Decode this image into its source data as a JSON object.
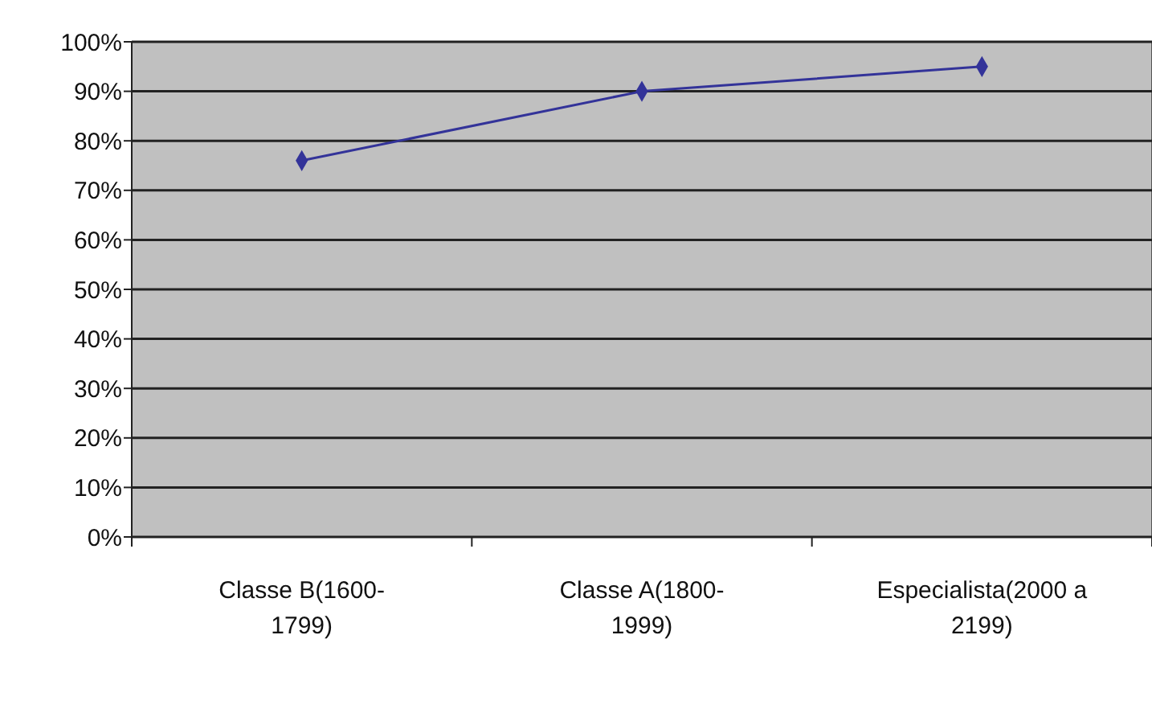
{
  "chart_data": {
    "type": "line",
    "categories": [
      "Classe B(1600-1799)",
      "Classe A(1800-1999)",
      "Especialista(2000 a 2199)"
    ],
    "series": [
      {
        "color": "#333399",
        "values": [
          76,
          90,
          95
        ]
      }
    ],
    "ylim": [
      0,
      100
    ],
    "yticks": [
      {
        "value": 0,
        "label": "0%"
      },
      {
        "value": 10,
        "label": "10%"
      },
      {
        "value": 20,
        "label": "20%"
      },
      {
        "value": 30,
        "label": "30%"
      },
      {
        "value": 40,
        "label": "40%"
      },
      {
        "value": 50,
        "label": "50%"
      },
      {
        "value": 60,
        "label": "60%"
      },
      {
        "value": 70,
        "label": "70%"
      },
      {
        "value": 80,
        "label": "80%"
      },
      {
        "value": 90,
        "label": "90%"
      },
      {
        "value": 100,
        "label": "100%"
      }
    ],
    "grid": "y",
    "marker": "diamond"
  }
}
